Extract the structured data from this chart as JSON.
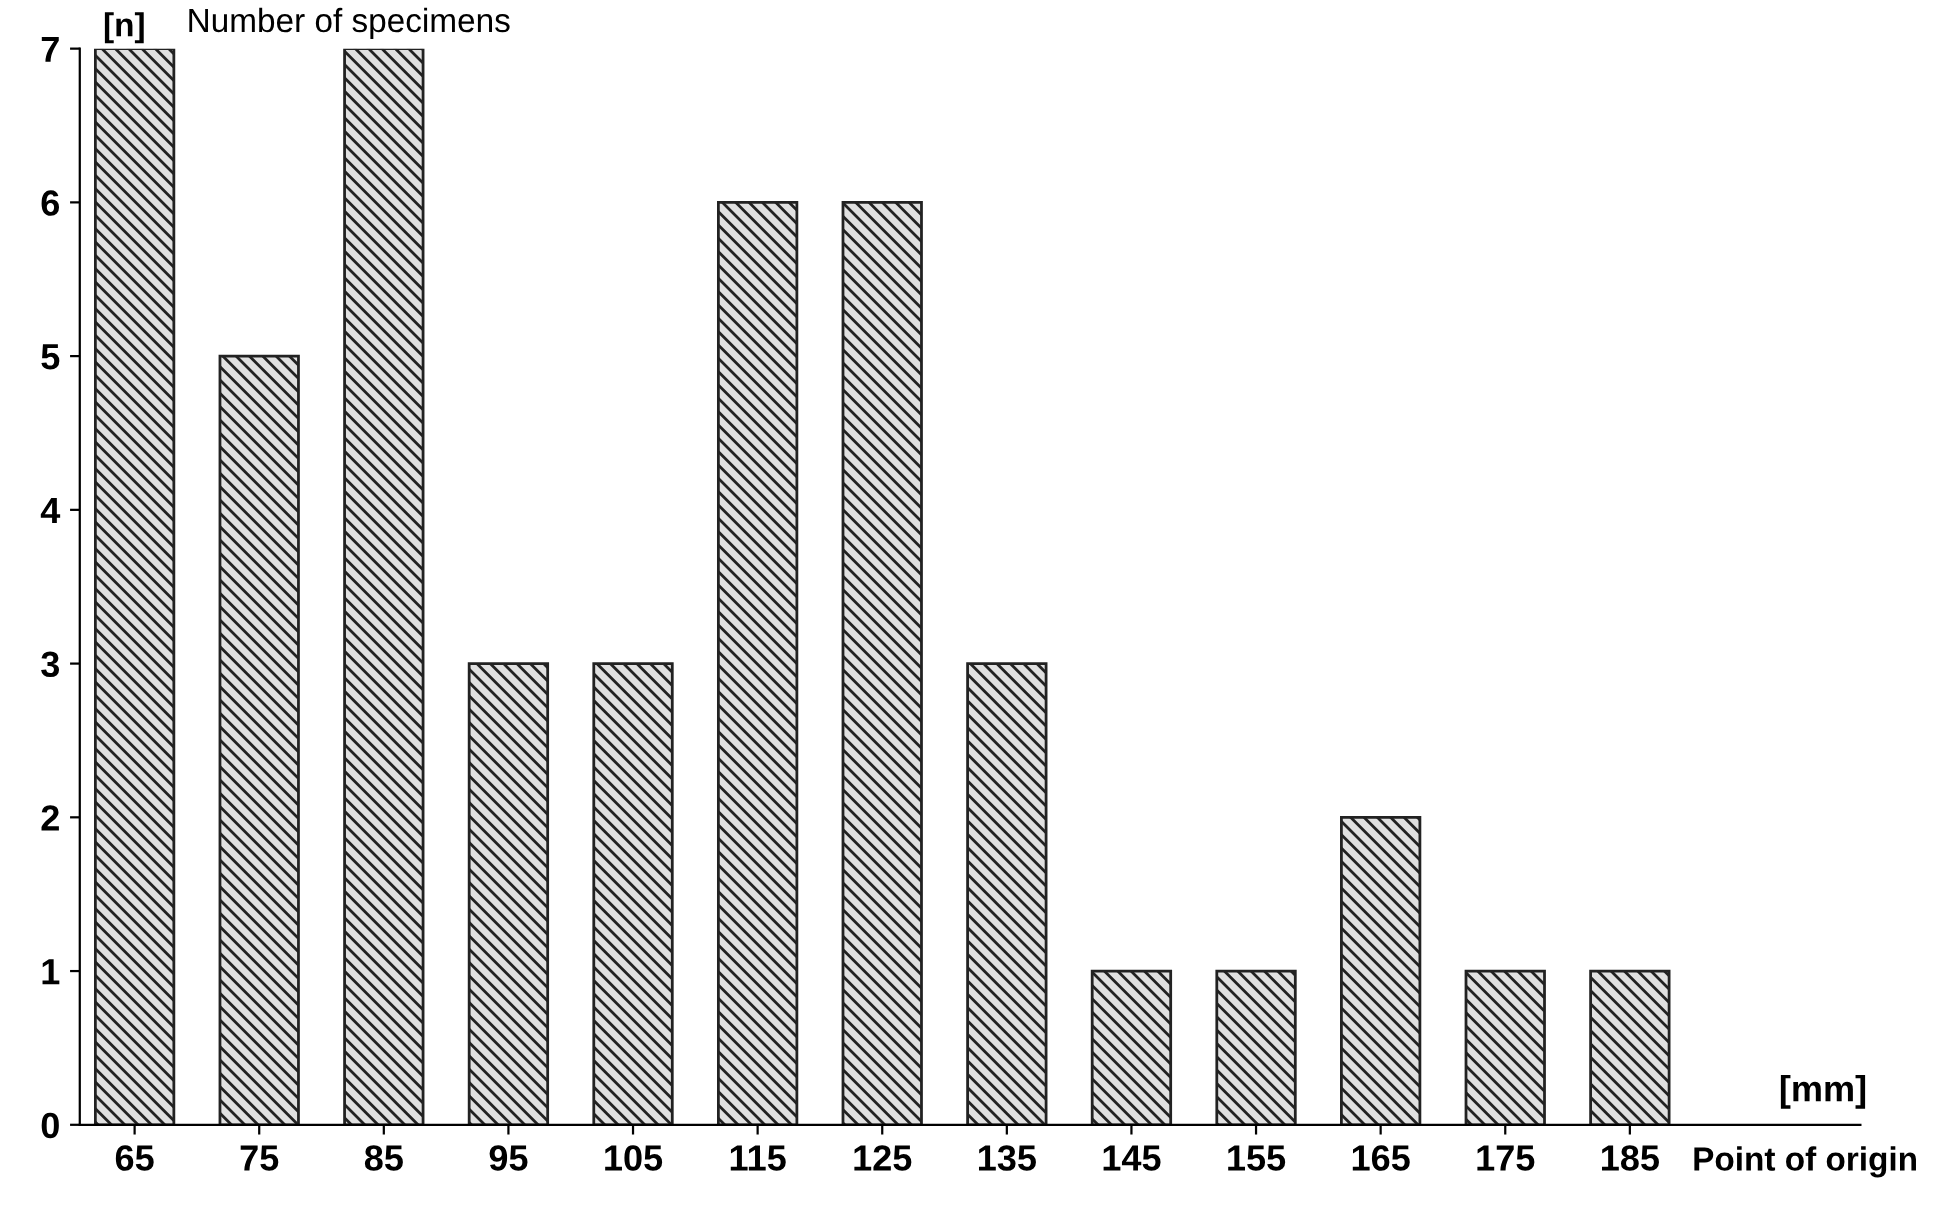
{
  "chart_data": {
    "type": "bar",
    "title": "Number of specimens",
    "ylabel": "[n]",
    "xlabel": "Point of origin",
    "annotations": [
      "[mm]"
    ],
    "categories": [
      "65",
      "75",
      "85",
      "95",
      "105",
      "115",
      "125",
      "135",
      "145",
      "155",
      "165",
      "175",
      "185"
    ],
    "values": [
      7,
      5,
      7,
      3,
      3,
      6,
      6,
      3,
      1,
      1,
      2,
      1,
      1
    ],
    "color": "#222222",
    "ylim": [
      0,
      7
    ],
    "yticks": [
      0,
      1,
      2,
      3,
      4,
      5,
      6,
      7
    ],
    "grid": false,
    "legend": false
  }
}
